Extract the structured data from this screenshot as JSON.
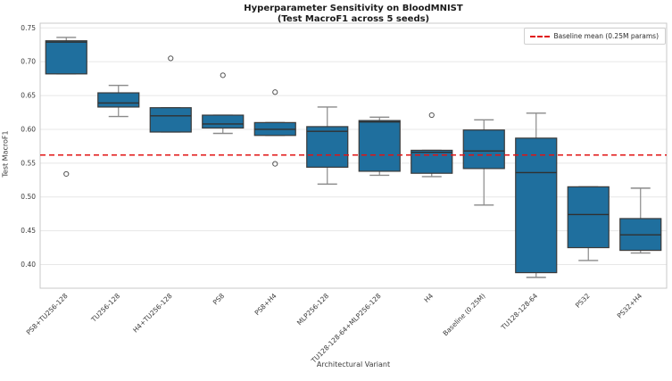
{
  "figure": {
    "title": "Hyperparameter Sensitivity on BloodMNIST",
    "subtitle": "(Test MacroF1 across 5 seeds)"
  },
  "legend": {
    "label": "Baseline mean (0.25M params)"
  },
  "colors": {
    "box_fill": "#1f6f9e",
    "box_edge": "#3a3a3a",
    "median": "#303030",
    "whisker": "#8a8a8a",
    "outlier_edge": "#555555",
    "baseline": "#e01414",
    "grid": "#e7e7e7",
    "spine": "#c9c9c9",
    "tick_text": "#3b3b3b"
  },
  "chart_data": {
    "type": "boxplot",
    "title": "Hyperparameter Sensitivity on BloodMNIST (Test MacroF1 across 5 seeds)",
    "xlabel": "Architectural Variant",
    "ylabel": "Test MacroF1",
    "ylim": [
      0.365,
      0.757
    ],
    "yticks": [
      0.4,
      0.45,
      0.5,
      0.55,
      0.6,
      0.65,
      0.7,
      0.75
    ],
    "ytick_labels": [
      "0.40",
      "0.45",
      "0.50",
      "0.55",
      "0.60",
      "0.65",
      "0.70",
      "0.75"
    ],
    "grid": "horizontal",
    "legend_position": "upper right",
    "baseline_mean": 0.562,
    "categories": [
      "PS8+TU256-128",
      "TU256-128",
      "H4+TU256-128",
      "PS8",
      "PS8+H4",
      "MLP256-128",
      "TU128-128-64+MLP256-128",
      "H4",
      "Baseline (0.25M)",
      "TU128-128-64",
      "PS32",
      "PS32+H4"
    ],
    "boxes": [
      {
        "label": "PS8+TU256-128",
        "whisker_low": 0.682,
        "q1": 0.682,
        "median": 0.729,
        "q3": 0.731,
        "whisker_high": 0.736,
        "outliers": [
          0.534
        ]
      },
      {
        "label": "TU256-128",
        "whisker_low": 0.619,
        "q1": 0.633,
        "median": 0.639,
        "q3": 0.654,
        "whisker_high": 0.665,
        "outliers": []
      },
      {
        "label": "H4+TU256-128",
        "whisker_low": 0.596,
        "q1": 0.596,
        "median": 0.62,
        "q3": 0.632,
        "whisker_high": 0.632,
        "outliers": [
          0.705
        ]
      },
      {
        "label": "PS8",
        "whisker_low": 0.594,
        "q1": 0.602,
        "median": 0.608,
        "q3": 0.621,
        "whisker_high": 0.621,
        "outliers": [
          0.68
        ]
      },
      {
        "label": "PS8+H4",
        "whisker_low": 0.591,
        "q1": 0.591,
        "median": 0.6,
        "q3": 0.61,
        "whisker_high": 0.61,
        "outliers": [
          0.655,
          0.549
        ]
      },
      {
        "label": "MLP256-128",
        "whisker_low": 0.519,
        "q1": 0.544,
        "median": 0.597,
        "q3": 0.604,
        "whisker_high": 0.633,
        "outliers": []
      },
      {
        "label": "TU128-128-64+MLP256-128",
        "whisker_low": 0.532,
        "q1": 0.538,
        "median": 0.611,
        "q3": 0.613,
        "whisker_high": 0.618,
        "outliers": []
      },
      {
        "label": "H4",
        "whisker_low": 0.53,
        "q1": 0.535,
        "median": 0.566,
        "q3": 0.569,
        "whisker_high": 0.569,
        "outliers": [
          0.621
        ]
      },
      {
        "label": "Baseline (0.25M)",
        "whisker_low": 0.488,
        "q1": 0.542,
        "median": 0.568,
        "q3": 0.599,
        "whisker_high": 0.614,
        "outliers": []
      },
      {
        "label": "TU128-128-64",
        "whisker_low": 0.381,
        "q1": 0.388,
        "median": 0.536,
        "q3": 0.587,
        "whisker_high": 0.624,
        "outliers": []
      },
      {
        "label": "PS32",
        "whisker_low": 0.406,
        "q1": 0.425,
        "median": 0.474,
        "q3": 0.515,
        "whisker_high": 0.515,
        "outliers": []
      },
      {
        "label": "PS32+H4",
        "whisker_low": 0.417,
        "q1": 0.421,
        "median": 0.444,
        "q3": 0.468,
        "whisker_high": 0.513,
        "outliers": []
      }
    ]
  }
}
